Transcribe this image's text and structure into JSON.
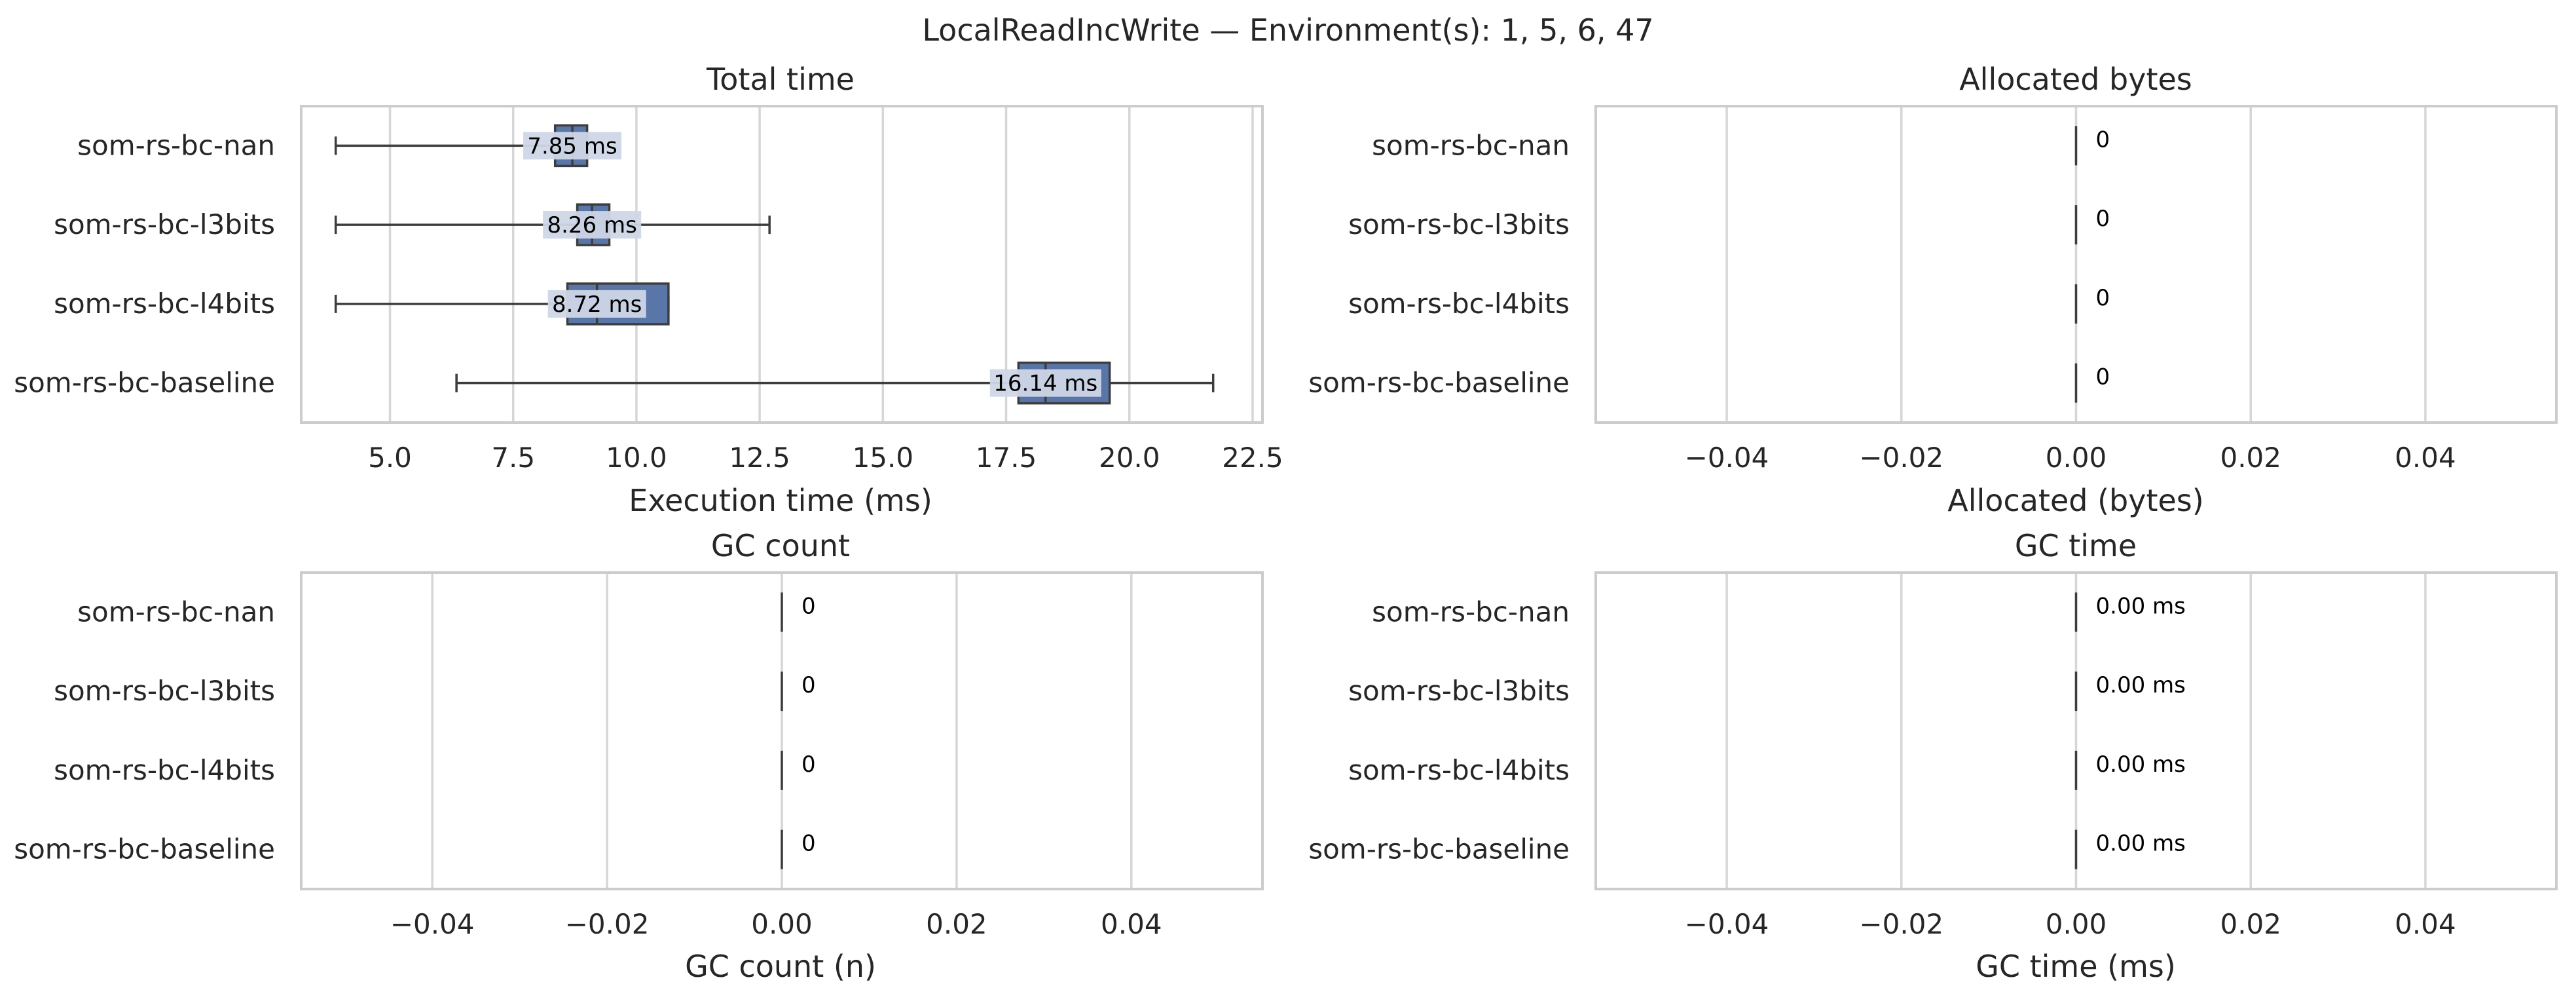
{
  "figure_title": "LocalReadIncWrite — Environment(s): 1, 5, 6, 47",
  "colors": {
    "box_fill": "#5a75a8",
    "box_edge": "#3d3d3d",
    "label_bg": "#cfd6e6",
    "grid": "#d6d6d6",
    "frame": "#cccccc",
    "text": "#262626"
  },
  "chart_data": [
    {
      "type": "box",
      "orientation": "horizontal",
      "title": "Total time",
      "xlabel": "Execution time (ms)",
      "categories": [
        "som-rs-bc-nan",
        "som-rs-bc-l3bits",
        "som-rs-bc-l4bits",
        "som-rs-bc-baseline"
      ],
      "boxes": [
        {
          "whisker_low": 3.9,
          "q1": 8.35,
          "median": 8.7,
          "q3": 9.0,
          "whisker_high": 9.0,
          "label": "7.85 ms"
        },
        {
          "whisker_low": 3.9,
          "q1": 8.8,
          "median": 9.1,
          "q3": 9.45,
          "whisker_high": 12.7,
          "label": "8.26 ms"
        },
        {
          "whisker_low": 3.9,
          "q1": 8.6,
          "median": 9.2,
          "q3": 10.65,
          "whisker_high": 10.65,
          "label": "8.72 ms"
        },
        {
          "whisker_low": 6.35,
          "q1": 17.75,
          "median": 18.3,
          "q3": 19.6,
          "whisker_high": 21.7,
          "label": "16.14 ms"
        }
      ],
      "xlim": [
        3.2,
        22.7
      ],
      "xticks": [
        5.0,
        7.5,
        10.0,
        12.5,
        15.0,
        17.5,
        20.0,
        22.5
      ],
      "xtick_labels": [
        "5.0",
        "7.5",
        "10.0",
        "12.5",
        "15.0",
        "17.5",
        "20.0",
        "22.5"
      ],
      "grid": "vertical"
    },
    {
      "type": "box",
      "orientation": "horizontal",
      "title": "Allocated bytes",
      "xlabel": "Allocated (bytes)",
      "categories": [
        "som-rs-bc-nan",
        "som-rs-bc-l3bits",
        "som-rs-bc-l4bits",
        "som-rs-bc-baseline"
      ],
      "boxes": [
        {
          "whisker_low": 0,
          "q1": 0,
          "median": 0,
          "q3": 0,
          "whisker_high": 0,
          "label": "0"
        },
        {
          "whisker_low": 0,
          "q1": 0,
          "median": 0,
          "q3": 0,
          "whisker_high": 0,
          "label": "0"
        },
        {
          "whisker_low": 0,
          "q1": 0,
          "median": 0,
          "q3": 0,
          "whisker_high": 0,
          "label": "0"
        },
        {
          "whisker_low": 0,
          "q1": 0,
          "median": 0,
          "q3": 0,
          "whisker_high": 0,
          "label": "0"
        }
      ],
      "xlim": [
        -0.055,
        0.055
      ],
      "xticks": [
        -0.04,
        -0.02,
        0.0,
        0.02,
        0.04
      ],
      "xtick_labels": [
        "−0.04",
        "−0.02",
        "0.00",
        "0.02",
        "0.04"
      ],
      "grid": "vertical"
    },
    {
      "type": "box",
      "orientation": "horizontal",
      "title": "GC count",
      "xlabel": "GC count (n)",
      "categories": [
        "som-rs-bc-nan",
        "som-rs-bc-l3bits",
        "som-rs-bc-l4bits",
        "som-rs-bc-baseline"
      ],
      "boxes": [
        {
          "whisker_low": 0,
          "q1": 0,
          "median": 0,
          "q3": 0,
          "whisker_high": 0,
          "label": "0"
        },
        {
          "whisker_low": 0,
          "q1": 0,
          "median": 0,
          "q3": 0,
          "whisker_high": 0,
          "label": "0"
        },
        {
          "whisker_low": 0,
          "q1": 0,
          "median": 0,
          "q3": 0,
          "whisker_high": 0,
          "label": "0"
        },
        {
          "whisker_low": 0,
          "q1": 0,
          "median": 0,
          "q3": 0,
          "whisker_high": 0,
          "label": "0"
        }
      ],
      "xlim": [
        -0.055,
        0.055
      ],
      "xticks": [
        -0.04,
        -0.02,
        0.0,
        0.02,
        0.04
      ],
      "xtick_labels": [
        "−0.04",
        "−0.02",
        "0.00",
        "0.02",
        "0.04"
      ],
      "grid": "vertical"
    },
    {
      "type": "box",
      "orientation": "horizontal",
      "title": "GC time",
      "xlabel": "GC time (ms)",
      "categories": [
        "som-rs-bc-nan",
        "som-rs-bc-l3bits",
        "som-rs-bc-l4bits",
        "som-rs-bc-baseline"
      ],
      "boxes": [
        {
          "whisker_low": 0,
          "q1": 0,
          "median": 0,
          "q3": 0,
          "whisker_high": 0,
          "label": "0.00 ms"
        },
        {
          "whisker_low": 0,
          "q1": 0,
          "median": 0,
          "q3": 0,
          "whisker_high": 0,
          "label": "0.00 ms"
        },
        {
          "whisker_low": 0,
          "q1": 0,
          "median": 0,
          "q3": 0,
          "whisker_high": 0,
          "label": "0.00 ms"
        },
        {
          "whisker_low": 0,
          "q1": 0,
          "median": 0,
          "q3": 0,
          "whisker_high": 0,
          "label": "0.00 ms"
        }
      ],
      "xlim": [
        -0.055,
        0.055
      ],
      "xticks": [
        -0.04,
        -0.02,
        0.0,
        0.02,
        0.04
      ],
      "xtick_labels": [
        "−0.04",
        "−0.02",
        "0.00",
        "0.02",
        "0.04"
      ],
      "grid": "vertical"
    }
  ]
}
